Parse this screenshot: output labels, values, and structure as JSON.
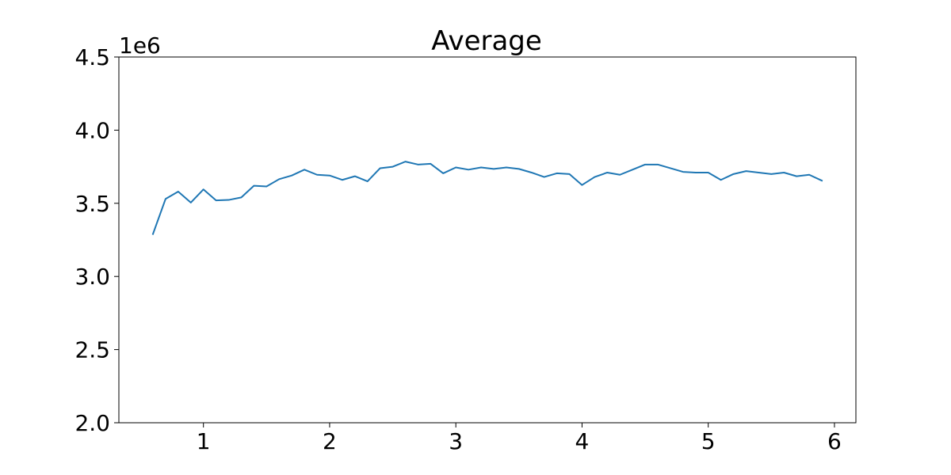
{
  "chart_data": {
    "type": "line",
    "title": "Average",
    "xlabel": "",
    "ylabel": "",
    "y_offset_label": "1e6",
    "xlim": [
      0.33,
      6.17
    ],
    "ylim": [
      2.0,
      4.5
    ],
    "x_ticks": [
      {
        "value": 1,
        "label": "1"
      },
      {
        "value": 2,
        "label": "2"
      },
      {
        "value": 3,
        "label": "3"
      },
      {
        "value": 4,
        "label": "4"
      },
      {
        "value": 5,
        "label": "5"
      },
      {
        "value": 6,
        "label": "6"
      }
    ],
    "y_ticks": [
      {
        "value": 2.0,
        "label": "2.0"
      },
      {
        "value": 2.5,
        "label": "2.5"
      },
      {
        "value": 3.0,
        "label": "3.0"
      },
      {
        "value": 3.5,
        "label": "3.5"
      },
      {
        "value": 4.0,
        "label": "4.0"
      },
      {
        "value": 4.5,
        "label": "4.5"
      }
    ],
    "grid": false,
    "legend": "none",
    "series": [
      {
        "color": "#1f77b4",
        "x": [
          0.6,
          0.7,
          0.8,
          0.9,
          1.0,
          1.1,
          1.2,
          1.3,
          1.4,
          1.5,
          1.6,
          1.7,
          1.8,
          1.9,
          2.0,
          2.1,
          2.2,
          2.3,
          2.4,
          2.5,
          2.6,
          2.7,
          2.8,
          2.9,
          3.0,
          3.1,
          3.2,
          3.3,
          3.4,
          3.5,
          3.6,
          3.7,
          3.8,
          3.9,
          4.0,
          4.1,
          4.2,
          4.3,
          4.4,
          4.5,
          4.6,
          4.7,
          4.8,
          4.9,
          5.0,
          5.1,
          5.2,
          5.3,
          5.4,
          5.5,
          5.6,
          5.7,
          5.8,
          5.9
        ],
        "y": [
          3.29,
          3.53,
          3.58,
          3.505,
          3.595,
          3.52,
          3.523,
          3.54,
          3.62,
          3.615,
          3.665,
          3.69,
          3.73,
          3.695,
          3.69,
          3.66,
          3.685,
          3.65,
          3.74,
          3.75,
          3.785,
          3.765,
          3.77,
          3.705,
          3.745,
          3.73,
          3.745,
          3.735,
          3.745,
          3.735,
          3.71,
          3.68,
          3.705,
          3.7,
          3.625,
          3.68,
          3.71,
          3.695,
          3.73,
          3.765,
          3.765,
          3.74,
          3.715,
          3.71,
          3.71,
          3.66,
          3.7,
          3.72,
          3.71,
          3.7,
          3.71,
          3.685,
          3.695,
          3.655
        ]
      }
    ]
  }
}
